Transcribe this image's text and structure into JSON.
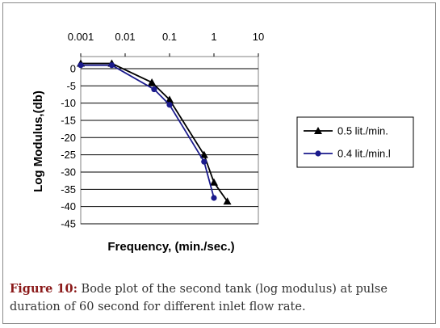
{
  "caption": {
    "label": "Figure 10:",
    "text": " Bode plot of the second tank (log modulus) at pulse duration of 60 second for different inlet flow rate."
  },
  "chart_data": {
    "type": "line",
    "xscale": "log",
    "xlim": [
      0.001,
      10
    ],
    "ylim": [
      -45,
      0
    ],
    "x_ticks": [
      0.001,
      0.01,
      0.1,
      1,
      10
    ],
    "x_tick_labels": [
      "0.001",
      "0.01",
      "0.1",
      "1",
      "10"
    ],
    "y_ticks": [
      0,
      -5,
      -10,
      -15,
      -20,
      -25,
      -30,
      -35,
      -40,
      -45
    ],
    "y_tick_labels": [
      "0",
      "-5",
      "-10",
      "-15",
      "-20",
      "-25",
      "-30",
      "-35",
      "-40",
      "-45"
    ],
    "x_tick_position": "top",
    "xlabel": "Frequency, (min./sec.)",
    "ylabel": "Log Modulus,(db)",
    "grid": "horizontal",
    "legend_position": "right",
    "series": [
      {
        "name": "0.5 lit./min.",
        "marker": "triangle",
        "color": "#000000",
        "x": [
          0.001,
          0.005,
          0.04,
          0.1,
          0.6,
          1.0,
          2.0
        ],
        "y": [
          1.5,
          1.5,
          -4.0,
          -9.0,
          -25.0,
          -33.0,
          -38.5
        ]
      },
      {
        "name": "0.4 lit./min.l",
        "marker": "circle",
        "color": "#1a1a8c",
        "x": [
          0.001,
          0.005,
          0.045,
          0.1,
          0.6,
          1.0
        ],
        "y": [
          1.0,
          1.0,
          -6.0,
          -10.5,
          -27.0,
          -37.5
        ]
      }
    ]
  }
}
